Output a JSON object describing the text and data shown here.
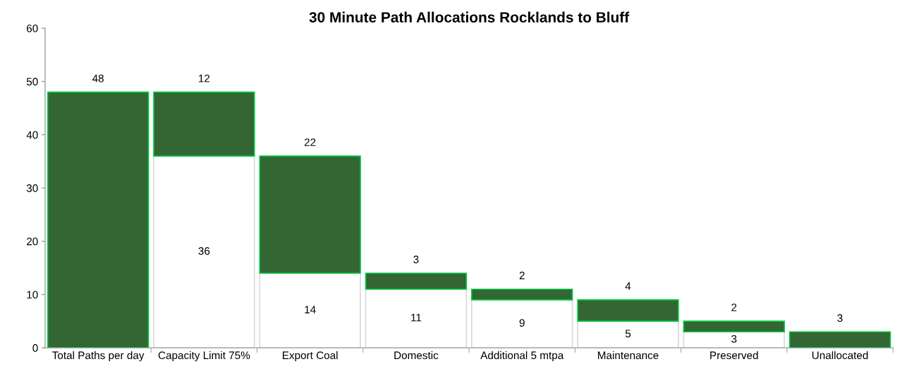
{
  "chart_data": {
    "type": "bar",
    "title": "30 Minute Path Allocations Rocklands to Bluff",
    "categories": [
      "Total Paths per day",
      "Capacity Limit 75%",
      "Export Coal",
      "Domestic",
      "Additional 5 mtpa",
      "Maintenance",
      "Preserved",
      "Unallocated"
    ],
    "stacked": true,
    "series": [
      {
        "color": "#ffffff",
        "values": [
          0,
          36,
          14,
          11,
          9,
          5,
          3,
          0
        ],
        "value_labels": [
          null,
          "36",
          "14",
          "11",
          "9",
          "5",
          "3",
          null
        ]
      },
      {
        "color": "#336633",
        "values": [
          48,
          12,
          22,
          3,
          2,
          4,
          2,
          3
        ],
        "value_labels": [
          "48",
          "12",
          "22",
          "3",
          "2",
          "4",
          "2",
          "3"
        ]
      }
    ],
    "ylim": [
      0,
      60
    ],
    "yticks": [
      0,
      10,
      20,
      30,
      40,
      50,
      60
    ],
    "grid": false
  }
}
